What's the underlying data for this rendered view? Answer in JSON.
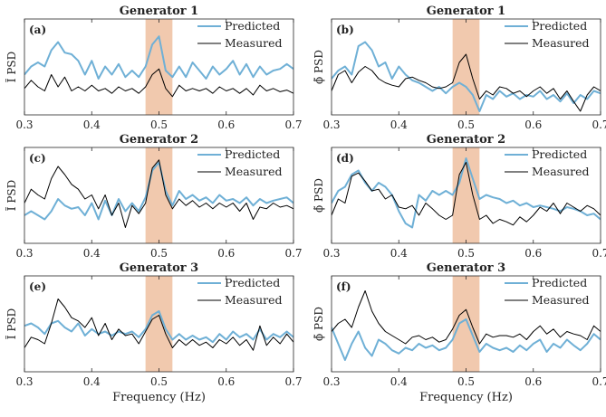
{
  "shared": {
    "xlabel": "Frequency (Hz)",
    "legend": [
      "Predicted",
      "Measured"
    ],
    "colors": {
      "predicted": "#6fb0d6",
      "measured": "#000000",
      "band": "#efbfa0"
    },
    "xticks": [
      "0.3",
      "0.4",
      "0.5",
      "0.6",
      "0.7"
    ]
  },
  "chart_data": [
    {
      "type": "line",
      "panel": "(a)",
      "title": "Generator  1",
      "ylabel": "Ĩ  PSD",
      "xlim": [
        0.3,
        0.7
      ],
      "ylim": [
        0,
        1
      ],
      "highlight_band": [
        0.48,
        0.52
      ],
      "x": [
        0.3,
        0.31,
        0.32,
        0.33,
        0.34,
        0.35,
        0.36,
        0.37,
        0.38,
        0.39,
        0.4,
        0.41,
        0.42,
        0.43,
        0.44,
        0.45,
        0.46,
        0.47,
        0.48,
        0.49,
        0.5,
        0.51,
        0.52,
        0.53,
        0.54,
        0.55,
        0.56,
        0.57,
        0.58,
        0.59,
        0.6,
        0.61,
        0.62,
        0.63,
        0.64,
        0.65,
        0.66,
        0.67,
        0.68,
        0.69,
        0.7
      ],
      "series": [
        {
          "name": "Predicted",
          "values": [
            0.45,
            0.55,
            0.6,
            0.55,
            0.75,
            0.85,
            0.72,
            0.7,
            0.62,
            0.45,
            0.62,
            0.4,
            0.55,
            0.45,
            0.58,
            0.42,
            0.5,
            0.42,
            0.55,
            0.82,
            0.92,
            0.5,
            0.42,
            0.55,
            0.42,
            0.6,
            0.5,
            0.4,
            0.55,
            0.45,
            0.52,
            0.62,
            0.45,
            0.58,
            0.42,
            0.55,
            0.45,
            0.5,
            0.52,
            0.58,
            0.52
          ]
        },
        {
          "name": "Measured",
          "values": [
            0.28,
            0.38,
            0.3,
            0.25,
            0.45,
            0.3,
            0.42,
            0.25,
            0.3,
            0.25,
            0.32,
            0.25,
            0.28,
            0.22,
            0.3,
            0.25,
            0.28,
            0.22,
            0.3,
            0.45,
            0.52,
            0.28,
            0.18,
            0.32,
            0.25,
            0.28,
            0.25,
            0.28,
            0.22,
            0.3,
            0.25,
            0.28,
            0.22,
            0.28,
            0.2,
            0.32,
            0.25,
            0.28,
            0.24,
            0.26,
            0.22
          ]
        }
      ]
    },
    {
      "type": "line",
      "panel": "(b)",
      "title": "Generator  1",
      "ylabel": "ϕ̃  PSD",
      "xlim": [
        0.3,
        0.7
      ],
      "ylim": [
        0,
        1
      ],
      "highlight_band": [
        0.48,
        0.52
      ],
      "x": [
        0.3,
        0.31,
        0.32,
        0.33,
        0.34,
        0.35,
        0.36,
        0.37,
        0.38,
        0.39,
        0.4,
        0.41,
        0.42,
        0.43,
        0.44,
        0.45,
        0.46,
        0.47,
        0.48,
        0.49,
        0.5,
        0.51,
        0.52,
        0.53,
        0.54,
        0.55,
        0.56,
        0.57,
        0.58,
        0.59,
        0.6,
        0.61,
        0.62,
        0.63,
        0.64,
        0.65,
        0.66,
        0.67,
        0.68,
        0.69,
        0.7
      ],
      "series": [
        {
          "name": "Predicted",
          "values": [
            0.4,
            0.5,
            0.55,
            0.45,
            0.8,
            0.85,
            0.75,
            0.55,
            0.6,
            0.4,
            0.55,
            0.45,
            0.38,
            0.35,
            0.3,
            0.25,
            0.3,
            0.22,
            0.3,
            0.35,
            0.3,
            0.2,
            0.0,
            0.2,
            0.15,
            0.25,
            0.18,
            0.22,
            0.15,
            0.2,
            0.18,
            0.25,
            0.15,
            0.2,
            0.12,
            0.22,
            0.1,
            0.2,
            0.15,
            0.25,
            0.22
          ]
        },
        {
          "name": "Measured",
          "values": [
            0.25,
            0.45,
            0.5,
            0.35,
            0.48,
            0.55,
            0.5,
            0.4,
            0.35,
            0.32,
            0.3,
            0.4,
            0.42,
            0.38,
            0.35,
            0.3,
            0.28,
            0.3,
            0.35,
            0.6,
            0.7,
            0.4,
            0.15,
            0.25,
            0.2,
            0.3,
            0.28,
            0.22,
            0.25,
            0.18,
            0.25,
            0.3,
            0.22,
            0.28,
            0.15,
            0.25,
            0.12,
            0.0,
            0.2,
            0.3,
            0.25
          ]
        }
      ]
    },
    {
      "type": "line",
      "panel": "(c)",
      "title": "Generator  2",
      "ylabel": "Ĩ  PSD",
      "xlim": [
        0.3,
        0.7
      ],
      "ylim": [
        0,
        1
      ],
      "highlight_band": [
        0.48,
        0.52
      ],
      "x": [
        0.3,
        0.31,
        0.32,
        0.33,
        0.34,
        0.35,
        0.36,
        0.37,
        0.38,
        0.39,
        0.4,
        0.41,
        0.42,
        0.43,
        0.44,
        0.45,
        0.46,
        0.47,
        0.48,
        0.49,
        0.5,
        0.51,
        0.52,
        0.53,
        0.54,
        0.55,
        0.56,
        0.57,
        0.58,
        0.59,
        0.6,
        0.61,
        0.62,
        0.63,
        0.64,
        0.65,
        0.66,
        0.67,
        0.68,
        0.69,
        0.7
      ],
      "series": [
        {
          "name": "Predicted",
          "values": [
            0.3,
            0.35,
            0.3,
            0.25,
            0.35,
            0.5,
            0.42,
            0.38,
            0.4,
            0.3,
            0.45,
            0.25,
            0.48,
            0.3,
            0.5,
            0.35,
            0.45,
            0.35,
            0.52,
            0.85,
            0.95,
            0.6,
            0.42,
            0.6,
            0.5,
            0.55,
            0.48,
            0.52,
            0.45,
            0.55,
            0.48,
            0.5,
            0.45,
            0.52,
            0.42,
            0.5,
            0.45,
            0.48,
            0.5,
            0.52,
            0.45
          ]
        },
        {
          "name": "Measured",
          "values": [
            0.45,
            0.62,
            0.55,
            0.5,
            0.75,
            0.9,
            0.8,
            0.68,
            0.62,
            0.5,
            0.55,
            0.38,
            0.55,
            0.3,
            0.45,
            0.15,
            0.42,
            0.32,
            0.45,
            0.88,
            0.98,
            0.55,
            0.38,
            0.5,
            0.42,
            0.48,
            0.4,
            0.45,
            0.38,
            0.45,
            0.4,
            0.45,
            0.35,
            0.45,
            0.25,
            0.4,
            0.38,
            0.45,
            0.4,
            0.42,
            0.38
          ]
        }
      ]
    },
    {
      "type": "line",
      "panel": "(d)",
      "title": "Generator  2",
      "ylabel": "ϕ̃  PSD",
      "xlim": [
        0.3,
        0.7
      ],
      "ylim": [
        0,
        1
      ],
      "highlight_band": [
        0.48,
        0.52
      ],
      "x": [
        0.3,
        0.31,
        0.32,
        0.33,
        0.34,
        0.35,
        0.36,
        0.37,
        0.38,
        0.39,
        0.4,
        0.41,
        0.42,
        0.43,
        0.44,
        0.45,
        0.46,
        0.47,
        0.48,
        0.49,
        0.5,
        0.51,
        0.52,
        0.53,
        0.54,
        0.55,
        0.56,
        0.57,
        0.58,
        0.59,
        0.6,
        0.61,
        0.62,
        0.63,
        0.64,
        0.65,
        0.66,
        0.67,
        0.68,
        0.69,
        0.7
      ],
      "series": [
        {
          "name": "Predicted",
          "values": [
            0.45,
            0.6,
            0.65,
            0.8,
            0.85,
            0.7,
            0.6,
            0.7,
            0.65,
            0.55,
            0.35,
            0.2,
            0.15,
            0.55,
            0.48,
            0.6,
            0.55,
            0.6,
            0.55,
            0.7,
            1.0,
            0.75,
            0.5,
            0.55,
            0.52,
            0.5,
            0.45,
            0.48,
            0.42,
            0.45,
            0.4,
            0.42,
            0.4,
            0.38,
            0.35,
            0.4,
            0.38,
            0.35,
            0.3,
            0.32,
            0.25
          ]
        },
        {
          "name": "Measured",
          "values": [
            0.3,
            0.5,
            0.45,
            0.78,
            0.82,
            0.72,
            0.6,
            0.62,
            0.5,
            0.55,
            0.4,
            0.38,
            0.42,
            0.3,
            0.45,
            0.38,
            0.3,
            0.25,
            0.3,
            0.8,
            0.95,
            0.55,
            0.25,
            0.3,
            0.2,
            0.25,
            0.22,
            0.18,
            0.28,
            0.22,
            0.3,
            0.4,
            0.35,
            0.45,
            0.32,
            0.45,
            0.4,
            0.35,
            0.42,
            0.38,
            0.3
          ]
        }
      ]
    },
    {
      "type": "line",
      "panel": "(e)",
      "title": "Generator  3",
      "ylabel": "Ĩ  PSD",
      "xlim": [
        0.3,
        0.7
      ],
      "ylim": [
        0,
        1
      ],
      "highlight_band": [
        0.48,
        0.52
      ],
      "x": [
        0.3,
        0.31,
        0.32,
        0.33,
        0.34,
        0.35,
        0.36,
        0.37,
        0.38,
        0.39,
        0.4,
        0.41,
        0.42,
        0.43,
        0.44,
        0.45,
        0.46,
        0.47,
        0.48,
        0.49,
        0.5,
        0.51,
        0.52,
        0.53,
        0.54,
        0.55,
        0.56,
        0.57,
        0.58,
        0.59,
        0.6,
        0.61,
        0.62,
        0.63,
        0.64,
        0.65,
        0.66,
        0.67,
        0.68,
        0.69,
        0.7
      ],
      "series": [
        {
          "name": "Predicted",
          "values": [
            0.52,
            0.55,
            0.5,
            0.42,
            0.55,
            0.58,
            0.5,
            0.45,
            0.55,
            0.4,
            0.48,
            0.42,
            0.45,
            0.4,
            0.45,
            0.42,
            0.45,
            0.38,
            0.48,
            0.65,
            0.7,
            0.48,
            0.35,
            0.42,
            0.35,
            0.4,
            0.35,
            0.38,
            0.32,
            0.42,
            0.35,
            0.45,
            0.38,
            0.42,
            0.35,
            0.48,
            0.35,
            0.42,
            0.38,
            0.45,
            0.38
          ]
        },
        {
          "name": "Measured",
          "values": [
            0.25,
            0.38,
            0.35,
            0.3,
            0.55,
            0.85,
            0.75,
            0.62,
            0.58,
            0.5,
            0.62,
            0.4,
            0.55,
            0.35,
            0.48,
            0.4,
            0.42,
            0.3,
            0.45,
            0.6,
            0.65,
            0.42,
            0.25,
            0.35,
            0.28,
            0.35,
            0.28,
            0.32,
            0.25,
            0.35,
            0.3,
            0.38,
            0.28,
            0.35,
            0.22,
            0.52,
            0.28,
            0.38,
            0.3,
            0.42,
            0.32
          ]
        }
      ]
    },
    {
      "type": "line",
      "panel": "(f)",
      "title": "Generator  3",
      "ylabel": "ϕ̃  PSD",
      "xlim": [
        0.3,
        0.7
      ],
      "ylim": [
        0,
        1
      ],
      "highlight_band": [
        0.48,
        0.52
      ],
      "x": [
        0.3,
        0.31,
        0.32,
        0.33,
        0.34,
        0.35,
        0.36,
        0.37,
        0.38,
        0.39,
        0.4,
        0.41,
        0.42,
        0.43,
        0.44,
        0.45,
        0.46,
        0.47,
        0.48,
        0.49,
        0.5,
        0.51,
        0.52,
        0.53,
        0.54,
        0.55,
        0.56,
        0.57,
        0.58,
        0.59,
        0.6,
        0.61,
        0.62,
        0.63,
        0.64,
        0.65,
        0.66,
        0.67,
        0.68,
        0.69,
        0.7
      ],
      "series": [
        {
          "name": "Predicted",
          "values": [
            0.5,
            0.3,
            0.1,
            0.3,
            0.45,
            0.25,
            0.15,
            0.35,
            0.3,
            0.22,
            0.18,
            0.25,
            0.22,
            0.3,
            0.25,
            0.28,
            0.22,
            0.25,
            0.35,
            0.55,
            0.6,
            0.4,
            0.2,
            0.3,
            0.25,
            0.22,
            0.25,
            0.2,
            0.28,
            0.22,
            0.3,
            0.35,
            0.2,
            0.3,
            0.25,
            0.35,
            0.28,
            0.22,
            0.3,
            0.42,
            0.35
          ]
        },
        {
          "name": "Measured",
          "values": [
            0.45,
            0.55,
            0.6,
            0.5,
            0.75,
            0.95,
            0.7,
            0.55,
            0.45,
            0.4,
            0.35,
            0.3,
            0.38,
            0.4,
            0.35,
            0.38,
            0.32,
            0.35,
            0.48,
            0.65,
            0.72,
            0.5,
            0.3,
            0.42,
            0.38,
            0.4,
            0.4,
            0.38,
            0.42,
            0.35,
            0.45,
            0.52,
            0.42,
            0.48,
            0.38,
            0.45,
            0.42,
            0.4,
            0.35,
            0.52,
            0.45
          ]
        }
      ]
    }
  ]
}
